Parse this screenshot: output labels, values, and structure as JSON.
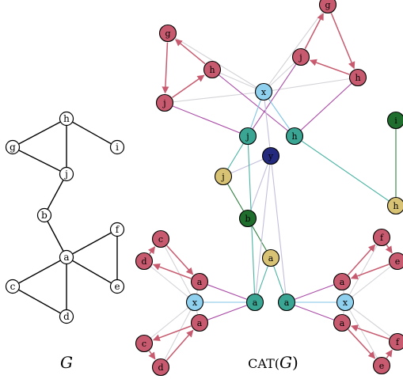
{
  "captions": {
    "left": "G",
    "right_prefix": "CAT(",
    "right_var": "G",
    "right_suffix": ")"
  },
  "colors": {
    "node_default": "#ffffff",
    "red": "#c75a6e",
    "teal": "#3aa592",
    "light_blue": "#8fd0ee",
    "yellow": "#d8c274",
    "dark_green": "#1f6e2e",
    "navy": "#242a7e",
    "edge_black": "#000000",
    "edge_grey": "#d3d3d8",
    "edge_purple": "#a94aa6",
    "edge_teal": "#49b3a2",
    "edge_blue": "#7fc3e6",
    "edge_lavender": "#c2bfdc",
    "edge_green": "#2f7e3f",
    "arrow_red": "#c75a6e"
  },
  "graph_G": {
    "nodes": [
      {
        "id": "h",
        "label": "h"
      },
      {
        "id": "g",
        "label": "g"
      },
      {
        "id": "i",
        "label": "i"
      },
      {
        "id": "j",
        "label": "j"
      },
      {
        "id": "b",
        "label": "b"
      },
      {
        "id": "a",
        "label": "a"
      },
      {
        "id": "f",
        "label": "f"
      },
      {
        "id": "e",
        "label": "e"
      },
      {
        "id": "c",
        "label": "c"
      },
      {
        "id": "d",
        "label": "d"
      }
    ],
    "edges": [
      [
        "h",
        "g"
      ],
      [
        "h",
        "i"
      ],
      [
        "h",
        "j"
      ],
      [
        "g",
        "j"
      ],
      [
        "j",
        "b"
      ],
      [
        "b",
        "a"
      ],
      [
        "a",
        "f"
      ],
      [
        "a",
        "e"
      ],
      [
        "f",
        "e"
      ],
      [
        "a",
        "c"
      ],
      [
        "a",
        "d"
      ],
      [
        "c",
        "d"
      ]
    ]
  },
  "graph_CAT": {
    "nodes": [
      {
        "id": "g_t",
        "label": "g",
        "color": "red"
      },
      {
        "id": "j_tr",
        "label": "j",
        "color": "red"
      },
      {
        "id": "h_tr",
        "label": "h",
        "color": "red"
      },
      {
        "id": "g_tl",
        "label": "g",
        "color": "red"
      },
      {
        "id": "h_tl",
        "label": "h",
        "color": "red"
      },
      {
        "id": "j_tl",
        "label": "j",
        "color": "red"
      },
      {
        "id": "x_t",
        "label": "x",
        "color": "light_blue"
      },
      {
        "id": "j_teal",
        "label": "j",
        "color": "teal"
      },
      {
        "id": "h_teal",
        "label": "h",
        "color": "teal"
      },
      {
        "id": "y",
        "label": "y",
        "color": "navy"
      },
      {
        "id": "i_g",
        "label": "i",
        "color": "dark_green"
      },
      {
        "id": "h_y",
        "label": "h",
        "color": "yellow"
      },
      {
        "id": "j_y",
        "label": "j",
        "color": "yellow"
      },
      {
        "id": "b_g",
        "label": "b",
        "color": "dark_green"
      },
      {
        "id": "a_y",
        "label": "a",
        "color": "yellow"
      },
      {
        "id": "c_l1",
        "label": "c",
        "color": "red"
      },
      {
        "id": "d_l1",
        "label": "d",
        "color": "red"
      },
      {
        "id": "a_l1",
        "label": "a",
        "color": "red"
      },
      {
        "id": "x_l",
        "label": "x",
        "color": "light_blue"
      },
      {
        "id": "a_lt",
        "label": "a",
        "color": "teal"
      },
      {
        "id": "a_l2",
        "label": "a",
        "color": "red"
      },
      {
        "id": "c_l2",
        "label": "c",
        "color": "red"
      },
      {
        "id": "d_l2",
        "label": "d",
        "color": "red"
      },
      {
        "id": "a_rt",
        "label": "a",
        "color": "teal"
      },
      {
        "id": "x_r",
        "label": "x",
        "color": "light_blue"
      },
      {
        "id": "f_r1",
        "label": "f",
        "color": "red"
      },
      {
        "id": "e_r1",
        "label": "e",
        "color": "red"
      },
      {
        "id": "a_r1",
        "label": "a",
        "color": "red"
      },
      {
        "id": "a_r2",
        "label": "a",
        "color": "red"
      },
      {
        "id": "f_r2",
        "label": "f",
        "color": "red"
      },
      {
        "id": "e_r2",
        "label": "e",
        "color": "red"
      }
    ],
    "arrows": [
      [
        "g_t",
        "h_tr"
      ],
      [
        "h_tr",
        "j_tr"
      ],
      [
        "j_tr",
        "g_t"
      ],
      [
        "g_tl",
        "j_tl"
      ],
      [
        "j_tl",
        "h_tl"
      ],
      [
        "h_tl",
        "g_tl"
      ],
      [
        "c_l1",
        "a_l1"
      ],
      [
        "a_l1",
        "d_l1"
      ],
      [
        "d_l1",
        "c_l1"
      ],
      [
        "c_l2",
        "d_l2"
      ],
      [
        "d_l2",
        "a_l2"
      ],
      [
        "a_l2",
        "c_l2"
      ],
      [
        "f_r1",
        "e_r1"
      ],
      [
        "e_r1",
        "a_r1"
      ],
      [
        "a_r1",
        "f_r1"
      ],
      [
        "f_r2",
        "a_r2"
      ],
      [
        "a_r2",
        "e_r2"
      ],
      [
        "e_r2",
        "f_r2"
      ]
    ],
    "edges": [
      [
        "x_t",
        "g_tl",
        "edge_grey"
      ],
      [
        "x_t",
        "h_tl",
        "edge_grey"
      ],
      [
        "x_t",
        "j_tl",
        "edge_grey"
      ],
      [
        "x_t",
        "g_t",
        "edge_grey"
      ],
      [
        "x_t",
        "h_tr",
        "edge_grey"
      ],
      [
        "x_t",
        "j_tr",
        "edge_grey"
      ],
      [
        "j_tl",
        "j_teal",
        "edge_purple"
      ],
      [
        "h_tl",
        "h_teal",
        "edge_purple"
      ],
      [
        "j_tr",
        "j_teal",
        "edge_purple"
      ],
      [
        "h_tr",
        "h_teal",
        "edge_purple"
      ],
      [
        "x_t",
        "j_teal",
        "edge_blue"
      ],
      [
        "x_t",
        "h_teal",
        "edge_blue"
      ],
      [
        "j_teal",
        "j_y",
        "edge_teal"
      ],
      [
        "h_teal",
        "h_y",
        "edge_teal"
      ],
      [
        "i_g",
        "h_y",
        "edge_green"
      ],
      [
        "j_y",
        "b_g",
        "edge_green"
      ],
      [
        "b_g",
        "a_y",
        "edge_green"
      ],
      [
        "y",
        "j_y",
        "edge_lavender"
      ],
      [
        "y",
        "a_lt",
        "edge_lavender"
      ],
      [
        "y",
        "a_rt",
        "edge_lavender"
      ],
      [
        "y",
        "x_t",
        "edge_lavender"
      ],
      [
        "y",
        "b_g",
        "edge_lavender"
      ],
      [
        "j_teal",
        "a_lt",
        "edge_teal"
      ],
      [
        "a_y",
        "a_lt",
        "edge_teal"
      ],
      [
        "a_y",
        "a_rt",
        "edge_teal"
      ],
      [
        "x_l",
        "a_lt",
        "edge_blue"
      ],
      [
        "x_r",
        "a_rt",
        "edge_blue"
      ],
      [
        "x_l",
        "c_l1",
        "edge_grey"
      ],
      [
        "x_l",
        "d_l1",
        "edge_grey"
      ],
      [
        "x_l",
        "a_l1",
        "edge_grey"
      ],
      [
        "x_l",
        "c_l2",
        "edge_grey"
      ],
      [
        "x_l",
        "d_l2",
        "edge_grey"
      ],
      [
        "x_l",
        "a_l2",
        "edge_grey"
      ],
      [
        "x_r",
        "f_r1",
        "edge_grey"
      ],
      [
        "x_r",
        "e_r1",
        "edge_grey"
      ],
      [
        "x_r",
        "a_r1",
        "edge_grey"
      ],
      [
        "x_r",
        "f_r2",
        "edge_grey"
      ],
      [
        "x_r",
        "e_r2",
        "edge_grey"
      ],
      [
        "x_r",
        "a_r2",
        "edge_grey"
      ],
      [
        "a_l1",
        "a_lt",
        "edge_purple"
      ],
      [
        "a_l2",
        "a_lt",
        "edge_purple"
      ],
      [
        "a_r1",
        "a_rt",
        "edge_purple"
      ],
      [
        "a_r2",
        "a_rt",
        "edge_purple"
      ]
    ]
  }
}
